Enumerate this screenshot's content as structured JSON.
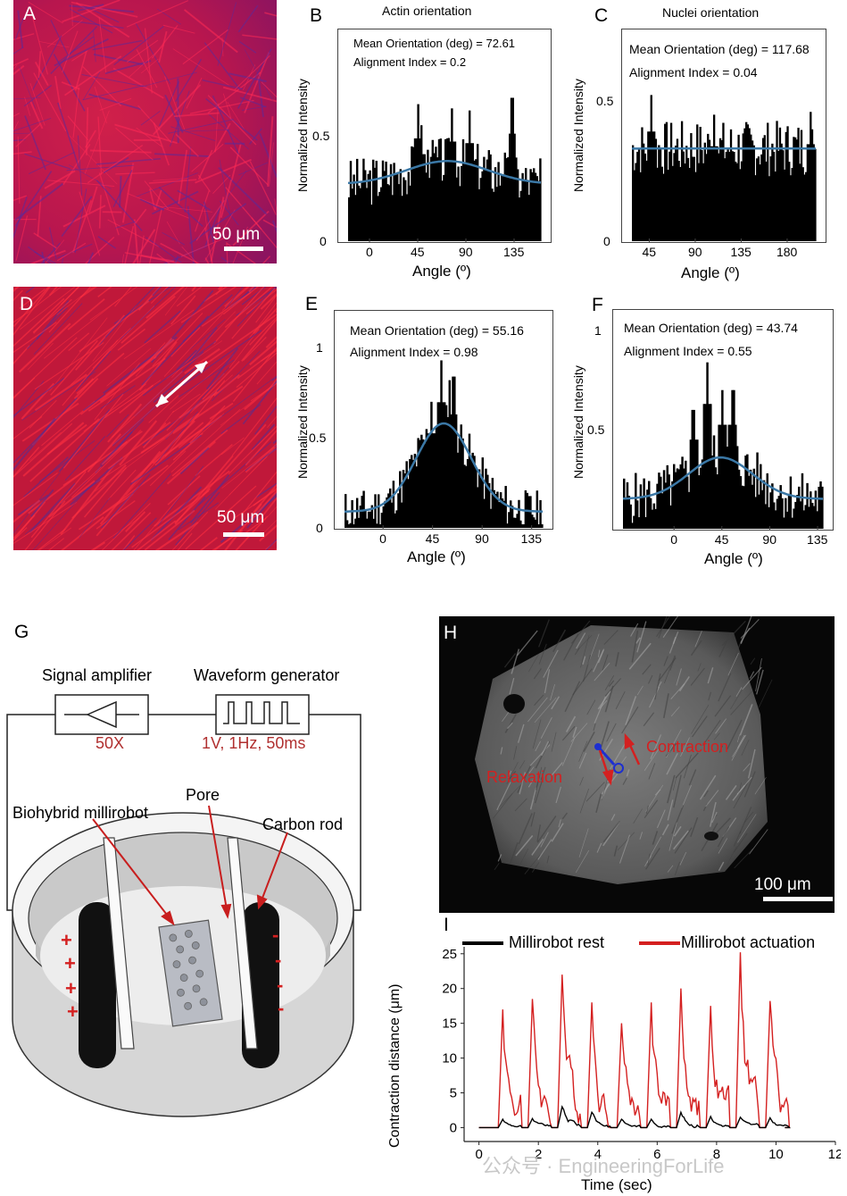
{
  "panels": {
    "A": {
      "label": "A",
      "scale": "50 μm"
    },
    "B": {
      "label": "B",
      "title": "Actin orientation",
      "mean": "Mean Orientation (deg) = 72.61",
      "index": "Alignment Index = 0.2",
      "xlabel": "Angle (º)",
      "ylabel": "Normalized Intensity"
    },
    "C": {
      "label": "C",
      "title": "Nuclei orientation",
      "mean": "Mean Orientation (deg) = 117.68",
      "index": "Alignment Index = 0.04",
      "xlabel": "Angle (º)",
      "ylabel": "Normalized Intensity"
    },
    "D": {
      "label": "D",
      "scale": "50 μm"
    },
    "E": {
      "label": "E",
      "mean": "Mean Orientation (deg) = 55.16",
      "index": "Alignment Index = 0.98",
      "xlabel": "Angle (º)",
      "ylabel": "Normalized Intensity"
    },
    "F": {
      "label": "F",
      "mean": "Mean Orientation (deg) = 43.74",
      "index": "Alignment Index = 0.55",
      "xlabel": "Angle (º)",
      "ylabel": "Normalized Intensity"
    },
    "G": {
      "label": "G",
      "amplifier": "Signal amplifier",
      "generator": "Waveform generator",
      "gain": "50X",
      "wave": "1V, 1Hz, 50ms",
      "pore": "Pore",
      "robot": "Biohybrid millirobot",
      "rod": "Carbon rod",
      "plus": "+",
      "minus": "-"
    },
    "H": {
      "label": "H",
      "contraction": "Contraction",
      "relaxation": "Relaxation",
      "scale": "100 μm"
    },
    "I": {
      "label": "I",
      "legend_rest": "Millirobot rest",
      "legend_act": "Millirobot actuation",
      "xlabel": "Time (sec)",
      "ylabel": "Contraction distance (μm)"
    }
  },
  "watermark": "公众号 · EngineeringForLife",
  "colors": {
    "hist": "#000000",
    "fit": "#3b78a6",
    "actuation": "#d42020",
    "rest": "#000000",
    "annotation": "#d42020"
  },
  "chart_data": [
    {
      "id": "B",
      "type": "bar",
      "title": "Actin orientation",
      "xlabel": "Angle (º)",
      "ylabel": "Normalized Intensity",
      "xlim": [
        -20,
        160
      ],
      "ylim": [
        0,
        1.0
      ],
      "xticks": [
        0,
        45,
        90,
        135
      ],
      "yticks": [
        0,
        0.5
      ],
      "fit": {
        "mean": 72.61,
        "amplitude": 0.38,
        "baseline": 0.27,
        "sigma": 38
      },
      "peaks": [
        [
          45,
          0.65
        ],
        [
          48,
          0.55
        ],
        [
          57,
          0.4
        ],
        [
          77,
          0.63
        ],
        [
          93,
          0.62
        ],
        [
          107,
          0.4
        ],
        [
          133,
          0.68
        ],
        [
          126,
          0.42
        ]
      ],
      "noise": 0.12,
      "seed": 3
    },
    {
      "id": "C",
      "type": "bar",
      "title": "Nuclei orientation",
      "xlabel": "Angle (º)",
      "ylabel": "Normalized Intensity",
      "xlim": [
        28,
        208
      ],
      "ylim": [
        0,
        0.75
      ],
      "xticks": [
        45,
        90,
        135,
        180
      ],
      "yticks": [
        0,
        0.5
      ],
      "fit": {
        "mean": 117.68,
        "amplitude": 0.33,
        "baseline": 0.3,
        "sigma": 400
      },
      "peaks": [
        [
          47,
          0.52
        ],
        [
          108,
          0.45
        ],
        [
          203,
          0.46
        ]
      ],
      "noise": 0.1,
      "seed": 7
    },
    {
      "id": "E",
      "type": "bar",
      "xlabel": "Angle (º)",
      "ylabel": "Normalized Intensity",
      "xlim": [
        -35,
        145
      ],
      "ylim": [
        0,
        1.2
      ],
      "xticks": [
        0,
        45,
        90,
        135
      ],
      "yticks": [
        0,
        0.5,
        1.0
      ],
      "fit": {
        "mean": 55.16,
        "amplitude": 0.58,
        "baseline": 0.09,
        "sigma": 25
      },
      "peaks": [
        [
          53,
          0.93
        ],
        [
          60,
          0.82
        ],
        [
          64,
          0.84
        ],
        [
          44,
          0.7
        ]
      ],
      "noise": 0.12,
      "seed": 11
    },
    {
      "id": "F",
      "type": "bar",
      "xlabel": "Angle (º)",
      "ylabel": "Normalized Intensity",
      "xlim": [
        -48,
        140
      ],
      "ylim": [
        0,
        1.1
      ],
      "xticks": [
        0,
        45,
        90,
        135
      ],
      "yticks": [
        0.5,
        1.0
      ],
      "fit": {
        "mean": 43.74,
        "amplitude": 0.36,
        "baseline": 0.15,
        "sigma": 30
      },
      "peaks": [
        [
          31,
          0.84
        ],
        [
          45,
          0.7
        ],
        [
          55,
          0.7
        ],
        [
          18,
          0.6
        ]
      ],
      "noise": 0.13,
      "seed": 5
    },
    {
      "id": "I",
      "type": "line",
      "xlabel": "Time (sec)",
      "ylabel": "Contraction distance (μm)",
      "xlim": [
        -0.5,
        12
      ],
      "ylim": [
        -2,
        26
      ],
      "xticks": [
        0,
        2,
        4,
        6,
        8,
        10,
        12
      ],
      "yticks": [
        0,
        5,
        10,
        15,
        20,
        25
      ],
      "series": [
        {
          "name": "Millirobot actuation",
          "peaks": [
            [
              0.8,
              17
            ],
            [
              1.8,
              18.5
            ],
            [
              2.8,
              22
            ],
            [
              3.8,
              18
            ],
            [
              4.8,
              15
            ],
            [
              5.8,
              18
            ],
            [
              6.8,
              20
            ],
            [
              7.8,
              17.5
            ],
            [
              8.8,
              25.2
            ],
            [
              9.8,
              18.2
            ]
          ]
        },
        {
          "name": "Millirobot rest",
          "peaks": [
            [
              0.8,
              1.2
            ],
            [
              1.8,
              1.3
            ],
            [
              2.8,
              3
            ],
            [
              3.8,
              2.2
            ],
            [
              4.8,
              1.2
            ],
            [
              5.8,
              1.2
            ],
            [
              6.8,
              2.2
            ],
            [
              7.8,
              1.6
            ],
            [
              8.8,
              1.5
            ],
            [
              9.8,
              1.4
            ]
          ]
        }
      ]
    }
  ]
}
